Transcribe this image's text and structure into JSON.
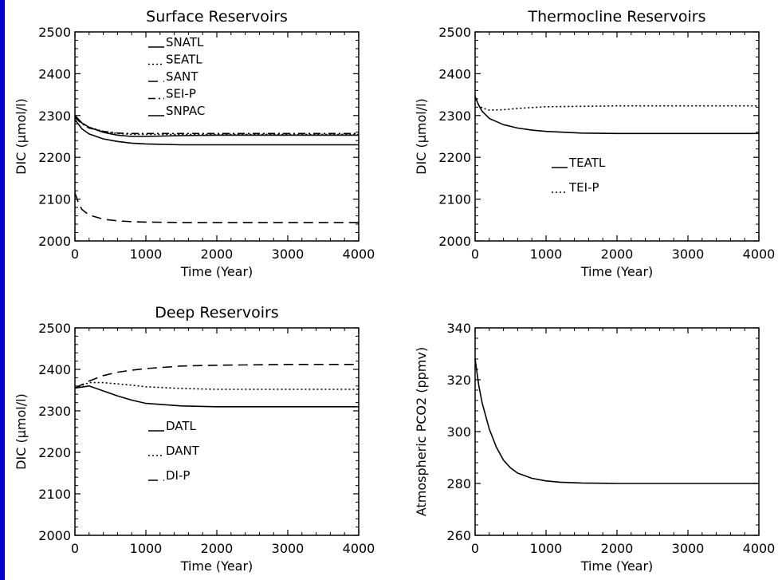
{
  "colors": {
    "background": "#0000cc",
    "panel": "#ffffff",
    "ink": "#000000"
  },
  "chart_data": [
    {
      "id": "surface",
      "type": "line",
      "title": "Surface Reservoirs",
      "xlabel": "Time (Year)",
      "ylabel": "DIC (μmol/l)",
      "xlim": [
        0,
        4000
      ],
      "ylim": [
        2000,
        2500
      ],
      "xticks": [
        0,
        1000,
        2000,
        3000,
        4000
      ],
      "yticks": [
        2000,
        2100,
        2200,
        2300,
        2400,
        2500
      ],
      "legend_position": "top-left",
      "series": [
        {
          "name": "SNATL",
          "dash": "solid",
          "x": [
            0,
            100,
            200,
            400,
            600,
            800,
            1000,
            1500,
            2000,
            3000,
            4000
          ],
          "y": [
            2300,
            2282,
            2272,
            2260,
            2253,
            2250,
            2250,
            2252,
            2253,
            2253,
            2253
          ]
        },
        {
          "name": "SEATL",
          "dash": "dotted",
          "x": [
            0,
            100,
            200,
            400,
            600,
            800,
            1000,
            1500,
            2000,
            3000,
            4000
          ],
          "y": [
            2298,
            2282,
            2272,
            2262,
            2257,
            2255,
            2255,
            2255,
            2255,
            2255,
            2255
          ]
        },
        {
          "name": "SANT",
          "dash": "dashed",
          "x": [
            0,
            50,
            100,
            200,
            400,
            600,
            800,
            1000,
            1500,
            2000,
            3000,
            4000
          ],
          "y": [
            2115,
            2090,
            2075,
            2062,
            2052,
            2048,
            2046,
            2045,
            2044,
            2044,
            2044,
            2044
          ]
        },
        {
          "name": "SEI-P",
          "dash": "dashdot",
          "x": [
            0,
            100,
            200,
            400,
            600,
            800,
            1000,
            1500,
            2000,
            3000,
            4000
          ],
          "y": [
            2295,
            2280,
            2270,
            2262,
            2258,
            2257,
            2257,
            2257,
            2257,
            2257,
            2257
          ]
        },
        {
          "name": "SNPAC",
          "dash": "solid",
          "x": [
            0,
            100,
            200,
            400,
            600,
            800,
            1000,
            1500,
            2000,
            3000,
            4000
          ],
          "y": [
            2290,
            2268,
            2256,
            2244,
            2238,
            2234,
            2232,
            2230,
            2230,
            2230,
            2230
          ]
        }
      ]
    },
    {
      "id": "thermocline",
      "type": "line",
      "title": "Thermocline Reservoirs",
      "xlabel": "Time (Year)",
      "ylabel": "DIC (μmol/l)",
      "xlim": [
        0,
        4000
      ],
      "ylim": [
        2000,
        2500
      ],
      "xticks": [
        0,
        1000,
        2000,
        3000,
        4000
      ],
      "yticks": [
        2000,
        2100,
        2200,
        2300,
        2400,
        2500
      ],
      "legend_position": "center",
      "series": [
        {
          "name": "TEATL",
          "dash": "solid",
          "x": [
            0,
            50,
            100,
            200,
            400,
            600,
            800,
            1000,
            1500,
            2000,
            3000,
            4000
          ],
          "y": [
            2345,
            2325,
            2310,
            2293,
            2278,
            2270,
            2265,
            2262,
            2258,
            2257,
            2257,
            2257
          ]
        },
        {
          "name": "TEI-P",
          "dash": "dotted",
          "x": [
            0,
            50,
            100,
            200,
            400,
            600,
            800,
            1000,
            1500,
            2000,
            3000,
            4000
          ],
          "y": [
            2345,
            2325,
            2318,
            2313,
            2314,
            2317,
            2319,
            2321,
            2322,
            2323,
            2323,
            2323
          ]
        }
      ]
    },
    {
      "id": "deep",
      "type": "line",
      "title": "Deep Reservoirs",
      "xlabel": "Time (Year)",
      "ylabel": "DIC (μmol/l)",
      "xlim": [
        0,
        4000
      ],
      "ylim": [
        2000,
        2500
      ],
      "xticks": [
        0,
        1000,
        2000,
        3000,
        4000
      ],
      "yticks": [
        2000,
        2100,
        2200,
        2300,
        2400,
        2500
      ],
      "legend_position": "center-left",
      "series": [
        {
          "name": "DATL",
          "dash": "solid",
          "x": [
            0,
            200,
            400,
            600,
            800,
            1000,
            1500,
            2000,
            3000,
            4000
          ],
          "y": [
            2355,
            2360,
            2348,
            2336,
            2326,
            2318,
            2312,
            2310,
            2310,
            2310
          ]
        },
        {
          "name": "DANT",
          "dash": "dotted",
          "x": [
            0,
            200,
            400,
            600,
            800,
            1000,
            1500,
            2000,
            3000,
            4000
          ],
          "y": [
            2355,
            2368,
            2368,
            2365,
            2362,
            2358,
            2354,
            2352,
            2352,
            2352
          ]
        },
        {
          "name": "DI-P",
          "dash": "dashed",
          "x": [
            0,
            200,
            400,
            600,
            800,
            1000,
            1500,
            2000,
            3000,
            4000
          ],
          "y": [
            2355,
            2372,
            2385,
            2393,
            2398,
            2402,
            2408,
            2410,
            2412,
            2412
          ]
        }
      ]
    },
    {
      "id": "pco2",
      "type": "line",
      "title": "",
      "xlabel": "Time (Year)",
      "ylabel": "Atmospheric PCO2 (ppmv)",
      "xlim": [
        0,
        4000
      ],
      "ylim": [
        260,
        340
      ],
      "xticks": [
        0,
        1000,
        2000,
        3000,
        4000
      ],
      "yticks": [
        260,
        280,
        300,
        320,
        340
      ],
      "legend_position": "none",
      "series": [
        {
          "dash": "solid",
          "x": [
            0,
            50,
            100,
            200,
            300,
            400,
            500,
            600,
            800,
            1000,
            1200,
            1500,
            2000,
            3000,
            4000
          ],
          "y": [
            328,
            318,
            311,
            301,
            294,
            289,
            286,
            284,
            282,
            281,
            280.5,
            280.2,
            280,
            280,
            280
          ]
        }
      ]
    }
  ]
}
